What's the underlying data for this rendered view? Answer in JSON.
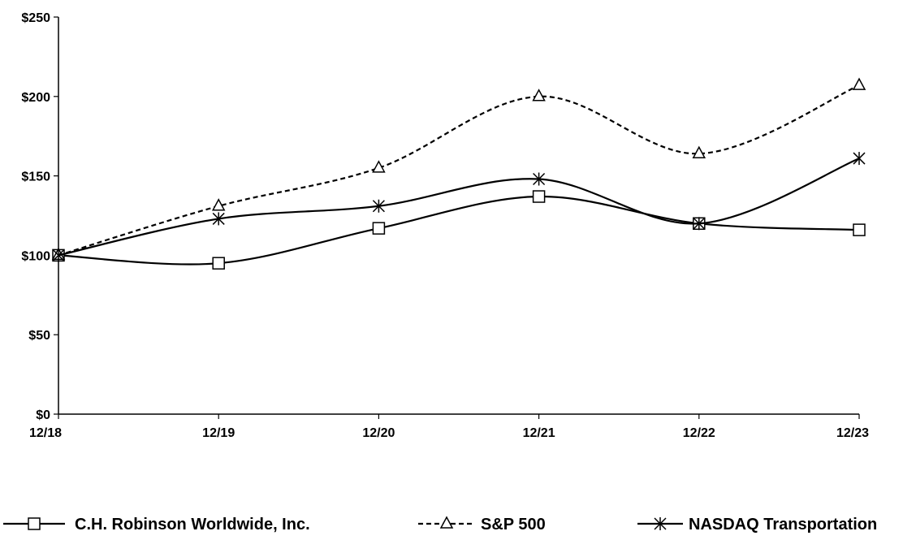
{
  "chart_data": {
    "type": "line",
    "title": "",
    "xlabel": "",
    "ylabel": "",
    "categories": [
      "12/18",
      "12/19",
      "12/20",
      "12/21",
      "12/22",
      "12/23"
    ],
    "ylim": [
      0,
      250
    ],
    "yticks": [
      0,
      50,
      100,
      150,
      200,
      250
    ],
    "ytick_labels": [
      "$0",
      "$50",
      "$100",
      "$150",
      "$200",
      "$250"
    ],
    "grid": false,
    "legend_position": "bottom",
    "series": [
      {
        "name": "C.H. Robinson Worldwide, Inc.",
        "values": [
          100,
          95,
          117,
          137,
          120,
          116
        ],
        "marker": "square",
        "dash": "solid",
        "color": "#000000"
      },
      {
        "name": "S&P 500",
        "values": [
          100,
          131,
          155,
          200,
          164,
          207
        ],
        "marker": "triangle",
        "dash": "dashed",
        "color": "#000000"
      },
      {
        "name": "NASDAQ Transportation",
        "values": [
          100,
          123,
          131,
          148,
          120,
          161
        ],
        "marker": "asterisk",
        "dash": "solid",
        "color": "#000000"
      }
    ]
  }
}
